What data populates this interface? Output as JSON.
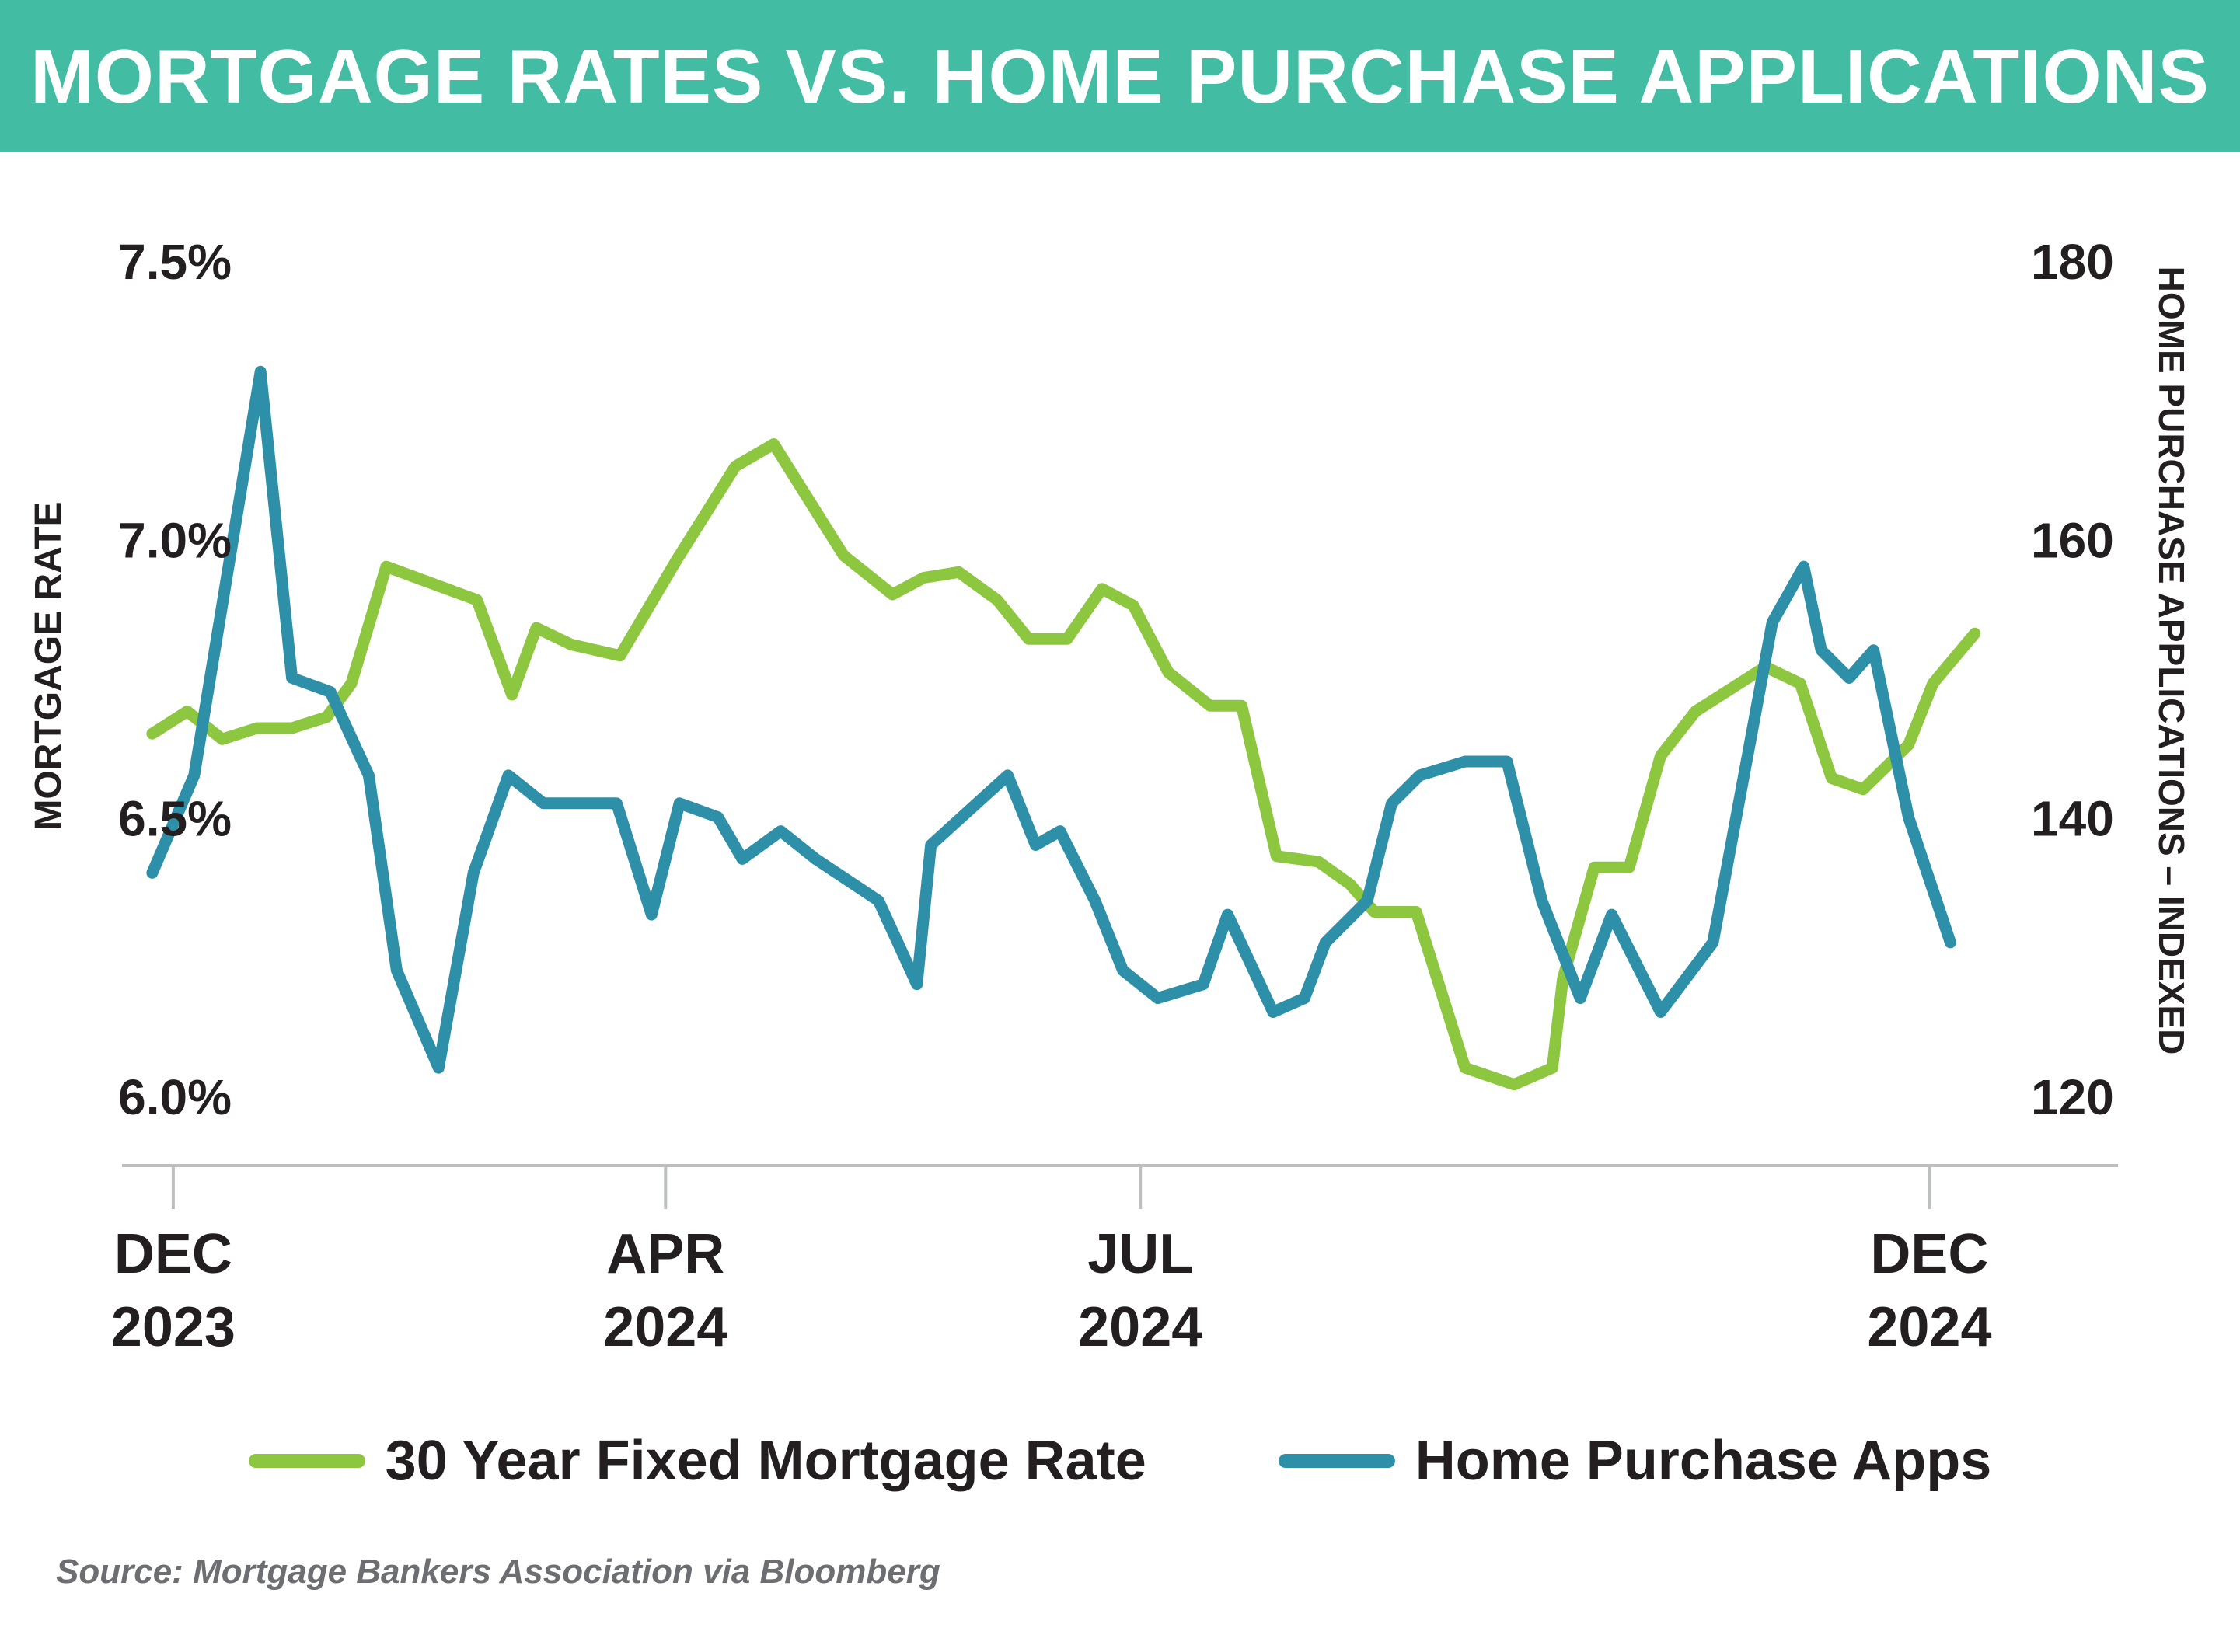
{
  "header": {
    "title": "MORTGAGE RATES VS. HOME PURCHASE APPLICATIONS"
  },
  "footer": {
    "source": "Source: Mortgage Bankers Association via Bloomberg"
  },
  "colors": {
    "banner": "#43bca4",
    "mortgage_rate_line": "#8dc63f",
    "purchase_apps_line": "#2e8fa8",
    "axis": "#bcbec0",
    "text": "#231f20",
    "source_text": "#6d6e71"
  },
  "chart_data": {
    "type": "line",
    "title": "MORTGAGE RATES VS. HOME PURCHASE APPLICATIONS",
    "xlabel": "",
    "x_ticks": [
      {
        "label": [
          "DEC",
          "2023"
        ],
        "week": 0.6
      },
      {
        "label": [
          "APR",
          "2024"
        ],
        "week": 14.7
      },
      {
        "label": [
          "JUL",
          "2024"
        ],
        "week": 28.3
      },
      {
        "label": [
          "DEC",
          "2024"
        ],
        "week": 50.9
      }
    ],
    "x_range_weeks": [
      -0.8,
      56.3
    ],
    "y_left": {
      "label": "MORTGAGE RATE",
      "range": [
        6.0,
        7.5
      ],
      "ticks": [
        7.5,
        7.0,
        6.5,
        6.0
      ],
      "tick_labels": [
        "7.5%",
        "7.0%",
        "6.5%",
        "6.0%"
      ]
    },
    "y_right": {
      "label": "HOME PURCHASE APPLICATIONS – INDEXED",
      "range": [
        120,
        180
      ],
      "ticks": [
        180,
        160,
        140,
        120
      ],
      "tick_labels": [
        "180",
        "160",
        "140",
        "120"
      ]
    },
    "grid": false,
    "legend_position": "bottom-center",
    "series": [
      {
        "name": "30 Year Fixed Mortgage Rate",
        "axis": "left",
        "color": "#8dc63f",
        "points": [
          [
            0.0,
            6.65
          ],
          [
            1.0,
            6.69
          ],
          [
            2.0,
            6.64
          ],
          [
            3.0,
            6.66
          ],
          [
            4.0,
            6.66
          ],
          [
            5.0,
            6.68
          ],
          [
            5.7,
            6.74
          ],
          [
            6.7,
            6.95
          ],
          [
            8.0,
            6.92
          ],
          [
            9.3,
            6.89
          ],
          [
            10.3,
            6.72
          ],
          [
            11.0,
            6.84
          ],
          [
            12.0,
            6.81
          ],
          [
            13.4,
            6.79
          ],
          [
            15.0,
            6.96
          ],
          [
            16.7,
            7.13
          ],
          [
            17.8,
            7.17
          ],
          [
            19.8,
            6.97
          ],
          [
            21.2,
            6.9
          ],
          [
            22.1,
            6.93
          ],
          [
            23.1,
            6.94
          ],
          [
            24.2,
            6.89
          ],
          [
            25.1,
            6.82
          ],
          [
            26.2,
            6.82
          ],
          [
            27.2,
            6.91
          ],
          [
            28.1,
            6.88
          ],
          [
            29.1,
            6.76
          ],
          [
            30.3,
            6.7
          ],
          [
            31.2,
            6.7
          ],
          [
            32.2,
            6.43
          ],
          [
            33.4,
            6.42
          ],
          [
            34.3,
            6.38
          ],
          [
            35.0,
            6.33
          ],
          [
            36.2,
            6.33
          ],
          [
            37.6,
            6.05
          ],
          [
            39.0,
            6.02
          ],
          [
            40.1,
            6.05
          ],
          [
            40.4,
            6.21
          ],
          [
            41.3,
            6.41
          ],
          [
            42.3,
            6.41
          ],
          [
            43.2,
            6.61
          ],
          [
            44.2,
            6.69
          ],
          [
            46.2,
            6.77
          ],
          [
            47.2,
            6.74
          ],
          [
            48.1,
            6.57
          ],
          [
            49.0,
            6.55
          ],
          [
            50.3,
            6.63
          ],
          [
            51.0,
            6.74
          ],
          [
            52.2,
            6.83
          ]
        ]
      },
      {
        "name": "Home Purchase Apps",
        "axis": "right",
        "color": "#2e8fa8",
        "points": [
          [
            0.0,
            136
          ],
          [
            1.2,
            143
          ],
          [
            3.1,
            172
          ],
          [
            4.0,
            150
          ],
          [
            5.1,
            149
          ],
          [
            6.2,
            143
          ],
          [
            7.0,
            129
          ],
          [
            8.2,
            122
          ],
          [
            9.2,
            136
          ],
          [
            10.2,
            143
          ],
          [
            11.2,
            141
          ],
          [
            13.3,
            141
          ],
          [
            14.3,
            133
          ],
          [
            15.1,
            141
          ],
          [
            16.2,
            140
          ],
          [
            16.9,
            137
          ],
          [
            18.0,
            139
          ],
          [
            19.0,
            137
          ],
          [
            20.8,
            134
          ],
          [
            21.9,
            128
          ],
          [
            22.3,
            138
          ],
          [
            24.5,
            143
          ],
          [
            25.3,
            138
          ],
          [
            26.0,
            139
          ],
          [
            27.0,
            134
          ],
          [
            27.8,
            129
          ],
          [
            28.8,
            127
          ],
          [
            30.1,
            128
          ],
          [
            30.8,
            133
          ],
          [
            32.1,
            126
          ],
          [
            33.0,
            127
          ],
          [
            33.6,
            131
          ],
          [
            34.8,
            134
          ],
          [
            35.5,
            141
          ],
          [
            36.3,
            143
          ],
          [
            37.6,
            144
          ],
          [
            38.8,
            144
          ],
          [
            39.8,
            134
          ],
          [
            40.9,
            127
          ],
          [
            41.8,
            133
          ],
          [
            43.2,
            126
          ],
          [
            44.7,
            131
          ],
          [
            46.4,
            154
          ],
          [
            47.3,
            158
          ],
          [
            47.8,
            152
          ],
          [
            48.6,
            150
          ],
          [
            49.3,
            152
          ],
          [
            50.3,
            140
          ],
          [
            51.5,
            131
          ]
        ]
      }
    ]
  }
}
